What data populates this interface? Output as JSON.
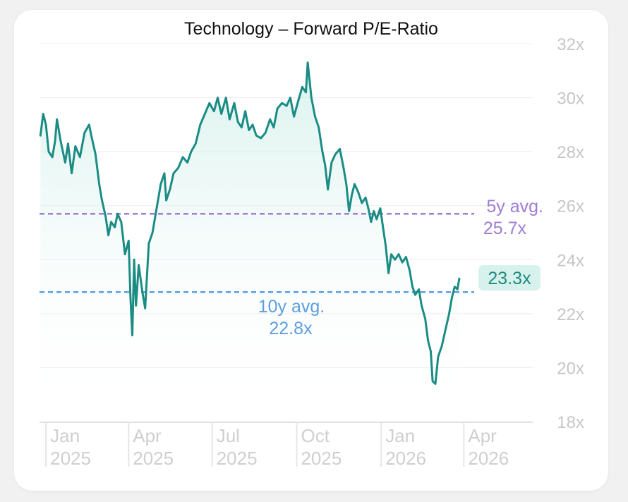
{
  "chart_data": {
    "type": "line",
    "title": "Technology – Forward P/E-Ratio",
    "ylim": [
      18,
      32
    ],
    "yticks": [
      "18x",
      "20x",
      "22x",
      "24x",
      "26x",
      "28x",
      "30x",
      "32x"
    ],
    "ytick_values": [
      18,
      20,
      22,
      24,
      26,
      28,
      30,
      32
    ],
    "xlim": [
      "2024-12-25",
      "2026-06-15"
    ],
    "xticks": [
      {
        "date": "2025-01-01",
        "month": "Jan",
        "year": "2025"
      },
      {
        "date": "2025-04-01",
        "month": "Apr",
        "year": "2025"
      },
      {
        "date": "2025-07-01",
        "month": "Jul",
        "year": "2025"
      },
      {
        "date": "2025-10-01",
        "month": "Oct",
        "year": "2025"
      },
      {
        "date": "2026-01-01",
        "month": "Jan",
        "year": "2026"
      },
      {
        "date": "2026-04-01",
        "month": "Apr",
        "year": "2026"
      }
    ],
    "grid": true,
    "series": [
      {
        "color": "#1a8c84",
        "points": [
          [
            "2024-12-26",
            28.6
          ],
          [
            "2024-12-29",
            29.4
          ],
          [
            "2025-01-01",
            29.0
          ],
          [
            "2025-01-04",
            28.0
          ],
          [
            "2025-01-08",
            27.8
          ],
          [
            "2025-01-11",
            28.4
          ],
          [
            "2025-01-13",
            29.2
          ],
          [
            "2025-01-17",
            28.4
          ],
          [
            "2025-01-22",
            27.6
          ],
          [
            "2025-01-25",
            28.3
          ],
          [
            "2025-01-29",
            27.2
          ],
          [
            "2025-02-02",
            28.2
          ],
          [
            "2025-02-07",
            27.8
          ],
          [
            "2025-02-12",
            28.7
          ],
          [
            "2025-02-17",
            29.0
          ],
          [
            "2025-02-20",
            28.5
          ],
          [
            "2025-02-24",
            27.9
          ],
          [
            "2025-02-28",
            26.8
          ],
          [
            "2025-03-03",
            26.2
          ],
          [
            "2025-03-07",
            25.6
          ],
          [
            "2025-03-10",
            24.9
          ],
          [
            "2025-03-13",
            25.4
          ],
          [
            "2025-03-17",
            25.2
          ],
          [
            "2025-03-20",
            25.7
          ],
          [
            "2025-03-24",
            25.4
          ],
          [
            "2025-03-28",
            24.2
          ],
          [
            "2025-04-01",
            24.7
          ],
          [
            "2025-04-03",
            22.6
          ],
          [
            "2025-04-05",
            21.2
          ],
          [
            "2025-04-07",
            24.0
          ],
          [
            "2025-04-09",
            22.3
          ],
          [
            "2025-04-12",
            23.8
          ],
          [
            "2025-04-16",
            22.8
          ],
          [
            "2025-04-19",
            22.2
          ],
          [
            "2025-04-23",
            24.6
          ],
          [
            "2025-04-27",
            25.0
          ],
          [
            "2025-05-02",
            26.0
          ],
          [
            "2025-05-06",
            26.8
          ],
          [
            "2025-05-10",
            27.2
          ],
          [
            "2025-05-12",
            26.2
          ],
          [
            "2025-05-16",
            26.6
          ],
          [
            "2025-05-20",
            27.2
          ],
          [
            "2025-05-25",
            27.4
          ],
          [
            "2025-05-30",
            27.8
          ],
          [
            "2025-06-04",
            27.6
          ],
          [
            "2025-06-08",
            28.0
          ],
          [
            "2025-06-13",
            28.3
          ],
          [
            "2025-06-18",
            29.0
          ],
          [
            "2025-06-23",
            29.4
          ],
          [
            "2025-06-28",
            29.8
          ],
          [
            "2025-07-03",
            29.5
          ],
          [
            "2025-07-07",
            30.0
          ],
          [
            "2025-07-11",
            29.4
          ],
          [
            "2025-07-16",
            30.0
          ],
          [
            "2025-07-20",
            29.2
          ],
          [
            "2025-07-25",
            29.8
          ],
          [
            "2025-07-29",
            29.1
          ],
          [
            "2025-08-02",
            28.9
          ],
          [
            "2025-08-06",
            29.5
          ],
          [
            "2025-08-10",
            28.8
          ],
          [
            "2025-08-14",
            29.0
          ],
          [
            "2025-08-18",
            28.6
          ],
          [
            "2025-08-23",
            28.5
          ],
          [
            "2025-08-28",
            28.7
          ],
          [
            "2025-09-02",
            29.2
          ],
          [
            "2025-09-06",
            28.9
          ],
          [
            "2025-09-10",
            29.6
          ],
          [
            "2025-09-15",
            29.8
          ],
          [
            "2025-09-20",
            29.7
          ],
          [
            "2025-09-24",
            30.0
          ],
          [
            "2025-09-28",
            29.3
          ],
          [
            "2025-10-02",
            29.8
          ],
          [
            "2025-10-07",
            30.4
          ],
          [
            "2025-10-11",
            30.2
          ],
          [
            "2025-10-13",
            31.3
          ],
          [
            "2025-10-17",
            30.0
          ],
          [
            "2025-10-21",
            29.3
          ],
          [
            "2025-10-25",
            28.9
          ],
          [
            "2025-10-29",
            28.0
          ],
          [
            "2025-11-01",
            27.5
          ],
          [
            "2025-11-04",
            26.6
          ],
          [
            "2025-11-08",
            27.6
          ],
          [
            "2025-11-12",
            27.9
          ],
          [
            "2025-11-17",
            28.1
          ],
          [
            "2025-11-21",
            27.4
          ],
          [
            "2025-11-24",
            26.8
          ],
          [
            "2025-11-27",
            25.8
          ],
          [
            "2025-11-30",
            26.4
          ],
          [
            "2025-12-03",
            26.8
          ],
          [
            "2025-12-07",
            26.5
          ],
          [
            "2025-12-11",
            26.1
          ],
          [
            "2025-12-15",
            26.3
          ],
          [
            "2025-12-18",
            25.9
          ],
          [
            "2025-12-21",
            25.4
          ],
          [
            "2025-12-24",
            25.8
          ],
          [
            "2025-12-27",
            25.5
          ],
          [
            "2025-12-31",
            25.9
          ],
          [
            "2026-01-03",
            25.2
          ],
          [
            "2026-01-06",
            24.5
          ],
          [
            "2026-01-09",
            23.5
          ],
          [
            "2026-01-12",
            24.2
          ],
          [
            "2026-01-16",
            24.0
          ],
          [
            "2026-01-20",
            24.2
          ],
          [
            "2026-01-24",
            23.9
          ],
          [
            "2026-01-28",
            24.1
          ],
          [
            "2026-02-01",
            23.6
          ],
          [
            "2026-02-04",
            23.0
          ],
          [
            "2026-02-07",
            22.7
          ],
          [
            "2026-02-11",
            22.9
          ],
          [
            "2026-02-14",
            22.3
          ],
          [
            "2026-02-18",
            21.8
          ],
          [
            "2026-02-21",
            21.0
          ],
          [
            "2026-02-24",
            20.6
          ],
          [
            "2026-02-26",
            19.5
          ],
          [
            "2026-03-01",
            19.4
          ],
          [
            "2026-03-04",
            20.4
          ],
          [
            "2026-03-08",
            20.8
          ],
          [
            "2026-03-12",
            21.4
          ],
          [
            "2026-03-16",
            22.0
          ],
          [
            "2026-03-19",
            22.6
          ],
          [
            "2026-03-22",
            23.0
          ],
          [
            "2026-03-25",
            22.9
          ],
          [
            "2026-03-27",
            23.3
          ]
        ]
      }
    ],
    "reference_lines": [
      {
        "label_1": "5y avg.",
        "label_2": "25.7x",
        "value": 25.7,
        "color": "#a07cd6"
      },
      {
        "label_1": "10y avg.",
        "label_2": "22.8x",
        "value": 22.8,
        "color": "#5d9ee0"
      }
    ],
    "current_value_label": "23.3x",
    "current_value": 23.3,
    "colors": {
      "line": "#1a8c84",
      "fill_top": "#cdeee8",
      "label_badge": "#d7f1ec",
      "grid": "#ececec"
    }
  }
}
